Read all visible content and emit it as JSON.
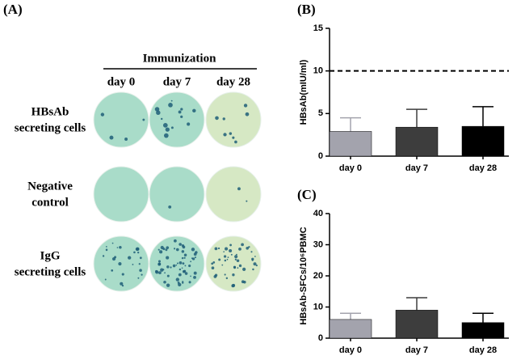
{
  "panel_a": {
    "panel_label": "(A)",
    "header": "Immunization",
    "columns": [
      "day 0",
      "day 7",
      "day 28"
    ],
    "rows": [
      [
        "HBsAb",
        "secreting cells"
      ],
      [
        "Negative",
        "control"
      ],
      [
        "IgG",
        "secreting cells"
      ]
    ]
  },
  "chart_data": [
    {
      "type": "bar",
      "panel_label": "(B)",
      "ylabel": "HBsAb(mIU/ml)",
      "categories": [
        "day 0",
        "day 7",
        "day 28"
      ],
      "values": [
        2.9,
        3.4,
        3.5
      ],
      "errors": [
        1.6,
        2.1,
        2.3
      ],
      "colors": [
        "#a3a3ad",
        "#3d3d3d",
        "#000000"
      ],
      "ylim": [
        0,
        15
      ],
      "yticks": [
        0,
        5,
        10,
        15
      ],
      "reference_line": 10
    },
    {
      "type": "bar",
      "panel_label": "(C)",
      "ylabel": "HBsAb-SFCs/10⁶PBMC",
      "categories": [
        "day 0",
        "day 7",
        "day 28"
      ],
      "values": [
        6,
        9,
        5
      ],
      "errors": [
        2,
        4,
        3
      ],
      "colors": [
        "#a3a3ad",
        "#3d3d3d",
        "#000000"
      ],
      "ylim": [
        0,
        40
      ],
      "yticks": [
        0,
        10,
        20,
        30,
        40
      ]
    }
  ]
}
